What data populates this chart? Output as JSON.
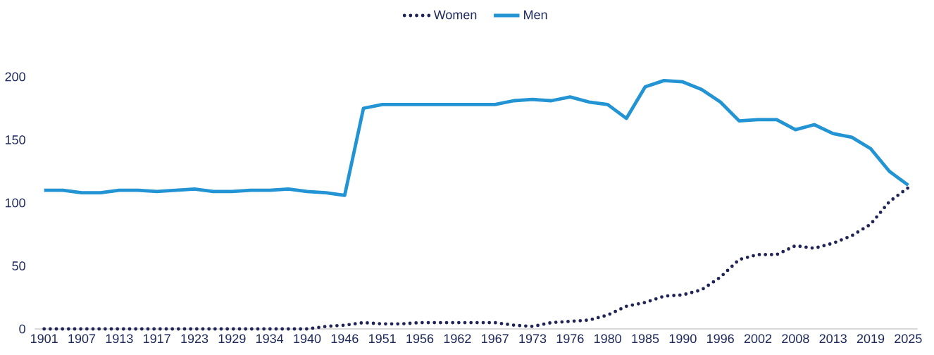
{
  "chart_data": {
    "type": "line",
    "categories": [
      "1901",
      null,
      "1907",
      null,
      "1913",
      null,
      "1917",
      null,
      "1923",
      null,
      "1929",
      null,
      "1934",
      null,
      "1940",
      null,
      "1946",
      null,
      "1951",
      null,
      "1956",
      null,
      "1962",
      null,
      "1967",
      null,
      "1973",
      null,
      "1976",
      null,
      "1980",
      null,
      "1985",
      null,
      "1990",
      null,
      "1996",
      null,
      "2002",
      null,
      "2008",
      null,
      "2013",
      null,
      "2019",
      null,
      "2025"
    ],
    "series": [
      {
        "name": "Women",
        "color": "#1f2454",
        "line_style": "dotted",
        "values": [
          0,
          0,
          0,
          0,
          0,
          0,
          0,
          0,
          0,
          0,
          0,
          0,
          0,
          0,
          0,
          2,
          3,
          5,
          4,
          4,
          5,
          5,
          5,
          5,
          5,
          3,
          2,
          5,
          6,
          7,
          11,
          18,
          21,
          26,
          27,
          31,
          41,
          55,
          59,
          59,
          66,
          64,
          68,
          74,
          83,
          101,
          112
        ]
      },
      {
        "name": "Men",
        "color": "#2394d3",
        "line_style": "solid",
        "values": [
          110,
          110,
          108,
          108,
          110,
          110,
          109,
          110,
          111,
          109,
          109,
          110,
          110,
          111,
          109,
          108,
          106,
          175,
          178,
          178,
          178,
          178,
          178,
          178,
          178,
          181,
          182,
          181,
          184,
          180,
          178,
          167,
          192,
          197,
          196,
          190,
          180,
          165,
          166,
          166,
          158,
          162,
          155,
          152,
          143,
          125,
          114
        ]
      }
    ],
    "ylim": [
      0,
      200
    ],
    "yticks": [
      0,
      50,
      100,
      150,
      200
    ],
    "legend": "top"
  }
}
